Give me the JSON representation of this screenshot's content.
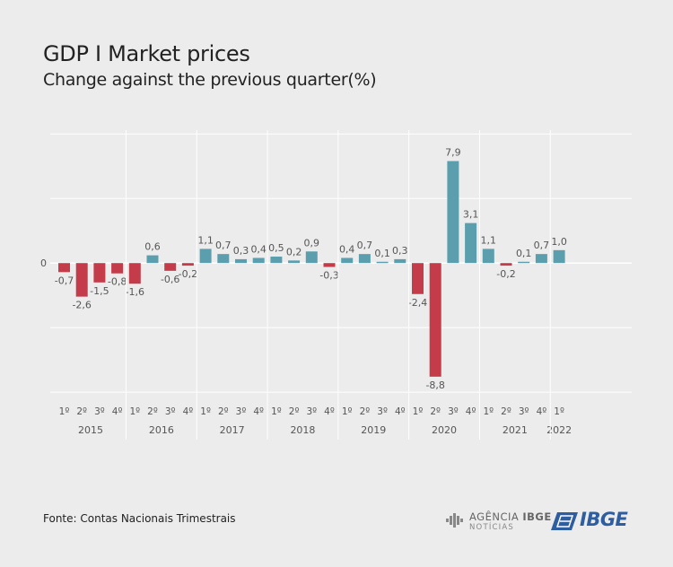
{
  "title": "GDP I Market prices",
  "subtitle": "Change against the previous quarter(%)",
  "source": "Fonte: Contas Nacionais Trimestrais",
  "logos": {
    "agencia_prefix": "AGÊNCIA",
    "agencia_brand": "IBGE",
    "agencia_sub": "NOTÍCIAS",
    "ibge": "IBGE"
  },
  "colors": {
    "positive": "#5b9fae",
    "negative": "#c43b4a",
    "grid": "#ffffff",
    "text": "#555555",
    "ibge_blue": "#2e5ea1"
  },
  "chart_data": {
    "type": "bar",
    "title": "GDP I Market prices",
    "subtitle": "Change against the previous quarter(%)",
    "xlabel": "",
    "ylabel": "",
    "zero_label": "0",
    "ylim": [
      -10.2,
      10.3
    ],
    "grid": true,
    "legend": "none",
    "years": [
      {
        "year": "2015",
        "quarters": [
          "1º",
          "2º",
          "3º",
          "4º"
        ],
        "values": [
          -0.7,
          -2.6,
          -1.5,
          -0.8
        ],
        "labels": [
          "-0,7",
          "-2,6",
          "-1,5",
          "-0,8"
        ]
      },
      {
        "year": "2016",
        "quarters": [
          "1º",
          "2º",
          "3º",
          "4º"
        ],
        "values": [
          -1.6,
          0.6,
          -0.6,
          -0.2
        ],
        "labels": [
          "-1,6",
          "0,6",
          "-0,6",
          "-0,2"
        ]
      },
      {
        "year": "2017",
        "quarters": [
          "1º",
          "2º",
          "3º",
          "4º"
        ],
        "values": [
          1.1,
          0.7,
          0.3,
          0.4
        ],
        "labels": [
          "1,1",
          "0,7",
          "0,3",
          "0,4"
        ]
      },
      {
        "year": "2018",
        "quarters": [
          "1º",
          "2º",
          "3º",
          "4º"
        ],
        "values": [
          0.5,
          0.2,
          0.9,
          -0.3
        ],
        "labels": [
          "0,5",
          "0,2",
          "0,9",
          "-0,3"
        ]
      },
      {
        "year": "2019",
        "quarters": [
          "1º",
          "2º",
          "3º",
          "4º"
        ],
        "values": [
          0.4,
          0.7,
          0.1,
          0.3
        ],
        "labels": [
          "0,4",
          "0,7",
          "0,1",
          "0,3"
        ]
      },
      {
        "year": "2020",
        "quarters": [
          "1º",
          "2º",
          "3º",
          "4º"
        ],
        "values": [
          -2.4,
          -8.8,
          7.9,
          3.1
        ],
        "labels": [
          "-2,4",
          "-8,8",
          "7,9",
          "3,1"
        ]
      },
      {
        "year": "2021",
        "quarters": [
          "1º",
          "2º",
          "3º",
          "4º"
        ],
        "values": [
          1.1,
          -0.2,
          0.1,
          0.7
        ],
        "labels": [
          "1,1",
          "-0,2",
          "0,1",
          "0,7"
        ]
      },
      {
        "year": "2022",
        "quarters": [
          "1º"
        ],
        "values": [
          1.0
        ],
        "labels": [
          "1,0"
        ]
      }
    ]
  }
}
